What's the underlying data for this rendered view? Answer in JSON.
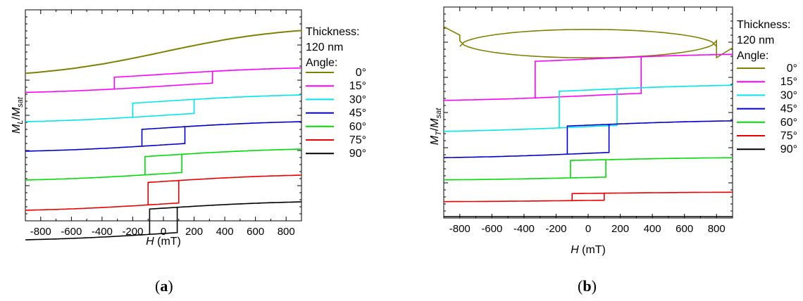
{
  "captions": [
    "(a)",
    "(b)"
  ],
  "captions_parts": [
    {
      "open": "(",
      "letter": "a",
      "close": ")"
    },
    {
      "open": "(",
      "letter": "b",
      "close": ")"
    }
  ],
  "legend": {
    "title_line1": "Thickness:",
    "title_line2": "120 nm",
    "title_line3": "Angle:"
  },
  "chart_data": [
    {
      "type": "line",
      "panel": "a",
      "xlabel": "H (mT)",
      "ylabel": "ML/Msat",
      "xlim": [
        -900,
        900
      ],
      "xticks": [
        -800,
        -600,
        -400,
        -200,
        0,
        200,
        400,
        600,
        800
      ],
      "xtick_labels": [
        "-800",
        "-600",
        "-400",
        "-200",
        "0",
        "200",
        "400",
        "600",
        "800"
      ],
      "y_ticks_labeled": false,
      "ylim": [
        0,
        7.5
      ],
      "series": [
        {
          "name": "0°",
          "color": "#808000",
          "offset": 6.0,
          "hysteresis_field": 0,
          "amplitude": 0.95,
          "shape": "smooth",
          "loop_height": 0
        },
        {
          "name": "15°",
          "color": "#ff00ff",
          "offset": 5.0,
          "hysteresis_field": 320,
          "amplitude": 0.8,
          "shape": "loop",
          "loop_height": 0.42
        },
        {
          "name": "30°",
          "color": "#00e5ee",
          "offset": 4.0,
          "hysteresis_field": 200,
          "amplitude": 0.8,
          "shape": "loop",
          "loop_height": 0.5
        },
        {
          "name": "45°",
          "color": "#0000cd",
          "offset": 3.0,
          "hysteresis_field": 140,
          "amplitude": 0.8,
          "shape": "loop",
          "loop_height": 0.6
        },
        {
          "name": "60°",
          "color": "#00dd00",
          "offset": 2.0,
          "hysteresis_field": 120,
          "amplitude": 0.8,
          "shape": "loop",
          "loop_height": 0.65
        },
        {
          "name": "75°",
          "color": "#ee0000",
          "offset": 1.0,
          "hysteresis_field": 100,
          "amplitude": 0.8,
          "shape": "loop",
          "loop_height": 0.8
        },
        {
          "name": "90°",
          "color": "#000000",
          "offset": 0.0,
          "hysteresis_field": 90,
          "amplitude": 0.8,
          "shape": "loop",
          "loop_height": 0.9
        }
      ]
    },
    {
      "type": "line",
      "panel": "b",
      "xlabel": "H (mT)",
      "ylabel": "MT/Msat",
      "xlim": [
        -900,
        900
      ],
      "xticks": [
        -800,
        -600,
        -400,
        -200,
        0,
        200,
        400,
        600,
        800
      ],
      "xtick_labels": [
        "-800",
        "-600",
        "-400",
        "-200",
        "0",
        "200",
        "400",
        "600",
        "800"
      ],
      "y_ticks_labeled": false,
      "ylim": [
        0,
        7.5
      ],
      "series": [
        {
          "name": "0°",
          "color": "#808000",
          "offset": 6.3,
          "hysteresis_field": 800,
          "amplitude": 0.5,
          "shape": "lens",
          "loop_height": 1.1
        },
        {
          "name": "15°",
          "color": "#ff00ff",
          "offset": 5.0,
          "hysteresis_field": 330,
          "amplitude": 0.6,
          "shape": "loop",
          "loop_height": 1.3
        },
        {
          "name": "30°",
          "color": "#00e5ee",
          "offset": 3.9,
          "hysteresis_field": 180,
          "amplitude": 0.6,
          "shape": "loop",
          "loop_height": 1.3
        },
        {
          "name": "45°",
          "color": "#0000cd",
          "offset": 2.8,
          "hysteresis_field": 130,
          "amplitude": 0.55,
          "shape": "loop",
          "loop_height": 1.0
        },
        {
          "name": "60°",
          "color": "#00dd00",
          "offset": 1.75,
          "hysteresis_field": 110,
          "amplitude": 0.3,
          "shape": "loop",
          "loop_height": 0.62
        },
        {
          "name": "75°",
          "color": "#ee0000",
          "offset": 0.75,
          "hysteresis_field": 100,
          "amplitude": 0.15,
          "shape": "loop",
          "loop_height": 0.25
        },
        {
          "name": "90°",
          "color": "#000000",
          "offset": 0.0,
          "hysteresis_field": 0,
          "amplitude": 0.0,
          "shape": "flat",
          "loop_height": 0
        }
      ]
    }
  ]
}
